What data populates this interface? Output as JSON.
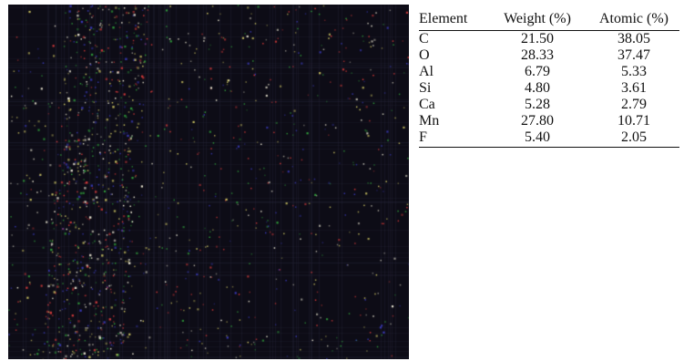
{
  "figure": {
    "map_icon": "eds-elemental-map-image",
    "map_background": "#0d0c16",
    "dot_colors": [
      "#e8e4d0",
      "#d23a3a",
      "#2f9a3a",
      "#3a3ab8",
      "#c8c060"
    ]
  },
  "table": {
    "headers": {
      "element": "Element",
      "weight": "Weight (%)",
      "atomic": "Atomic (%)"
    },
    "rows": [
      {
        "element": "C",
        "weight": "21.50",
        "atomic": "38.05"
      },
      {
        "element": "O",
        "weight": "28.33",
        "atomic": "37.47"
      },
      {
        "element": "Al",
        "weight": "6.79",
        "atomic": "5.33"
      },
      {
        "element": "Si",
        "weight": "4.80",
        "atomic": "3.61"
      },
      {
        "element": "Ca",
        "weight": "5.28",
        "atomic": "2.79"
      },
      {
        "element": "Mn",
        "weight": "27.80",
        "atomic": "10.71"
      },
      {
        "element": "F",
        "weight": "5.40",
        "atomic": "2.05"
      }
    ]
  }
}
